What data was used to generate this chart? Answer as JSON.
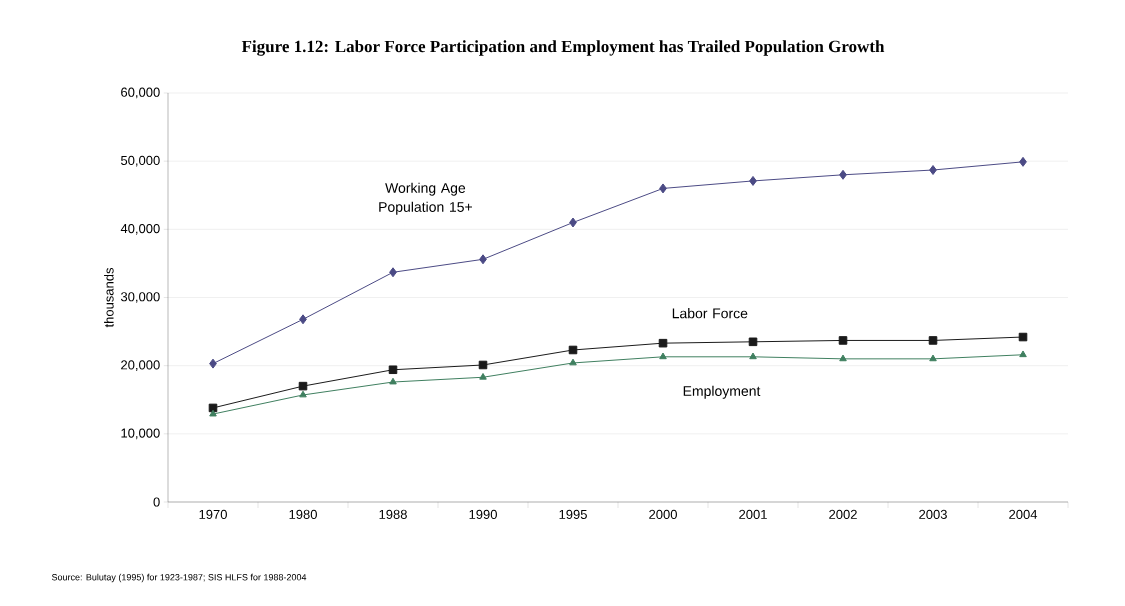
{
  "chart_data": {
    "type": "line",
    "title": "Figure 1.12: Labor Force Participation and Employment has Trailed Population Growth",
    "ylabel": "thousands",
    "annotations": [
      "Source: Bulutay (1995) for 1923-1987; SIS HLFS for 1988-2004"
    ],
    "categories": [
      "1970",
      "1980",
      "1988",
      "1990",
      "1995",
      "2000",
      "2001",
      "2002",
      "2003",
      "2004"
    ],
    "series": [
      {
        "name": "Working Age Population 15+",
        "color": "#4b4a85",
        "marker": "diamond",
        "values": [
          20300,
          26800,
          33700,
          35600,
          41000,
          46000,
          47100,
          48000,
          48700,
          49900
        ]
      },
      {
        "name": "Labor Force",
        "color": "#1a1a1a",
        "marker": "square",
        "values": [
          13800,
          17000,
          19400,
          20100,
          22300,
          23300,
          23500,
          23700,
          23700,
          24200
        ]
      },
      {
        "name": "Employment",
        "color": "#3f7f5f",
        "marker": "triangle",
        "values": [
          12900,
          15700,
          17600,
          18300,
          20400,
          21300,
          21300,
          21000,
          21000,
          21600
        ]
      }
    ],
    "ylim": [
      0,
      60000
    ],
    "yticks": [
      {
        "value": 0,
        "label": "0"
      },
      {
        "value": 10000,
        "label": "10,000"
      },
      {
        "value": 20000,
        "label": "20,000"
      },
      {
        "value": 30000,
        "label": "30,000"
      },
      {
        "value": 40000,
        "label": "40,000"
      },
      {
        "value": 50000,
        "label": "50,000"
      },
      {
        "value": 60000,
        "label": "60,000"
      }
    ],
    "grid": "y",
    "line_style": "solid"
  }
}
